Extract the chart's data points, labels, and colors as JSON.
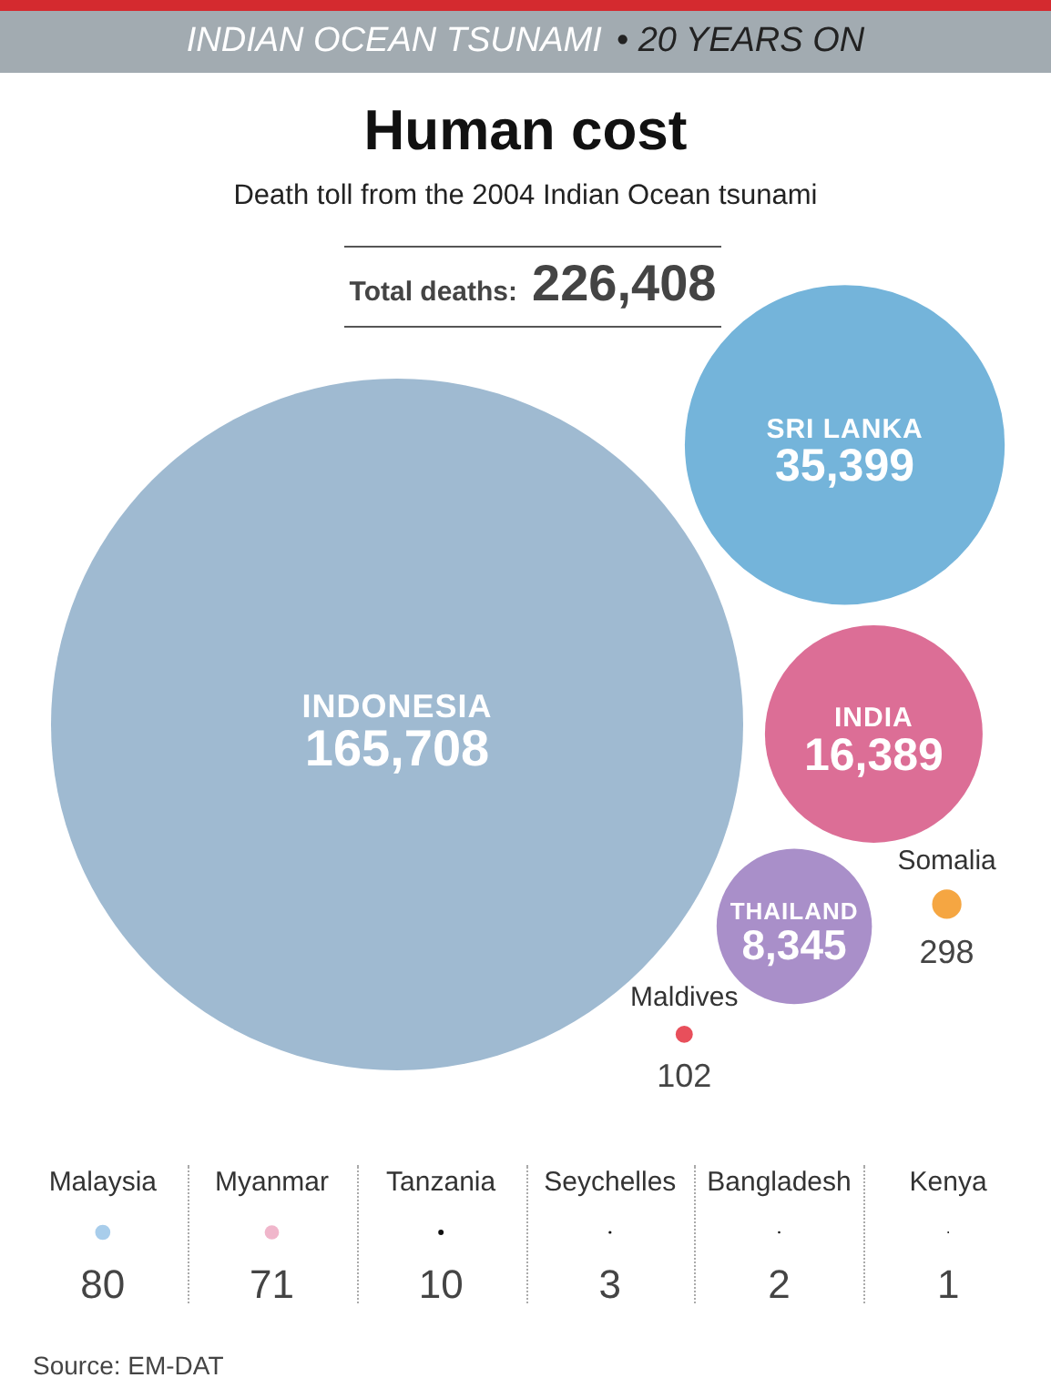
{
  "chart_data": [
    {
      "type": "other",
      "title": "Human cost",
      "subtitle": "Death toll from the 2004 Indian Ocean tsunami",
      "annotations": [
        "INDIAN OCEAN TSUNAMI",
        "• 20 YEARS ON",
        "Total deaths:",
        "226,408"
      ],
      "categories": [
        "INDONESIA",
        "SRI LANKA",
        "INDIA",
        "THAILAND",
        "Somalia",
        "Maldives"
      ],
      "values": [
        165708,
        35399,
        16389,
        8345,
        298,
        102
      ],
      "value_labels": [
        "165,708",
        "35,399",
        "16,389",
        "8,345",
        "298",
        "102"
      ],
      "colors": [
        "#9fbad1",
        "#74b4da",
        "#dc6e96",
        "#a98fc9",
        "#f5a642",
        "#e84f5b"
      ]
    },
    {
      "type": "other",
      "categories": [
        "Malaysia",
        "Myanmar",
        "Tanzania",
        "Seychelles",
        "Bangladesh",
        "Kenya"
      ],
      "values": [
        80,
        71,
        10,
        3,
        2,
        1
      ],
      "colors": [
        "#a8cdeb",
        "#f0b6cb",
        "#111111",
        "#111111",
        "#111111",
        "#111111"
      ],
      "data_labels": true,
      "annotations": [
        "Source: EM-DAT"
      ]
    }
  ]
}
